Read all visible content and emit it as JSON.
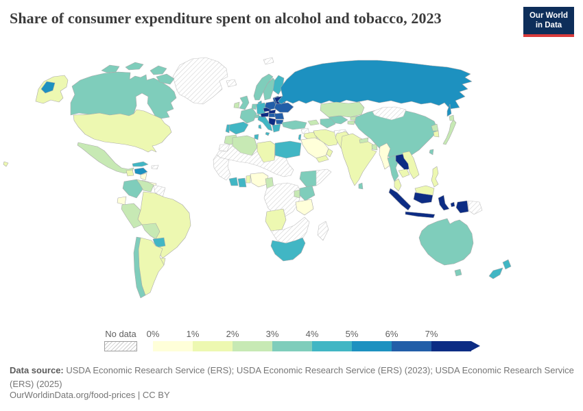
{
  "header": {
    "title": "Share of consumer expenditure spent on alcohol and tobacco, 2023",
    "logo": {
      "line1": "Our World",
      "line2": "in Data",
      "bg": "#0d2e5a",
      "accent": "#d93b3b"
    }
  },
  "legend": {
    "no_data_label": "No data",
    "ticks": [
      "0%",
      "1%",
      "2%",
      "3%",
      "4%",
      "5%",
      "6%",
      "7%"
    ],
    "bin_colors": [
      "#ffffd9",
      "#edf8b1",
      "#c7e9b4",
      "#7fcdbb",
      "#41b6c4",
      "#1d91c0",
      "#225ea8",
      "#0c2c84"
    ],
    "arrow_color": "#0c2c84"
  },
  "footer": {
    "source_label": "Data source:",
    "source_text": " USDA Economic Research Service (ERS); USDA Economic Research Service (ERS) (2023); USDA Economic Research Service (ERS) (2025)",
    "citation": "OurWorldinData.org/food-prices | CC BY"
  },
  "chart_data": {
    "type": "choropleth_map",
    "title": "Share of consumer expenditure spent on alcohol and tobacco, 2023",
    "unit": "% of consumer expenditure",
    "legend_bins": [
      {
        "range": "0-1%",
        "color": "#ffffd9"
      },
      {
        "range": "1-2%",
        "color": "#edf8b1"
      },
      {
        "range": "2-3%",
        "color": "#c7e9b4"
      },
      {
        "range": "3-4%",
        "color": "#7fcdbb"
      },
      {
        "range": "4-5%",
        "color": "#41b6c4"
      },
      {
        "range": "5-6%",
        "color": "#1d91c0"
      },
      {
        "range": "6-7%",
        "color": "#225ea8"
      },
      {
        "range": "7%+",
        "color": "#0c2c84"
      },
      {
        "range": "No data",
        "color": "no-data"
      }
    ],
    "entities": {
      "canada": {
        "label": "Canada",
        "value": "3-4%",
        "color": "#7fcdbb"
      },
      "greenland": {
        "label": "Greenland",
        "value": "No data",
        "color": "no-data"
      },
      "usa": {
        "label": "United States",
        "value": "1-2%",
        "color": "#edf8b1"
      },
      "mexico": {
        "label": "Mexico",
        "value": "2-3%",
        "color": "#c7e9b4"
      },
      "guatemala": {
        "label": "Guatemala",
        "value": "1-2%",
        "color": "#edf8b1"
      },
      "honduras": {
        "label": "Honduras",
        "value": "5-6%",
        "color": "#1d91c0"
      },
      "nicaragua": {
        "label": "Nicaragua",
        "value": "0-1%",
        "color": "#ffffd9"
      },
      "costa_rica_panama": {
        "label": "Costa Rica & Panama",
        "value": "0-1%",
        "color": "#ffffd9"
      },
      "cuba": {
        "label": "Cuba",
        "value": "4-5%",
        "color": "#41b6c4"
      },
      "hispaniola": {
        "label": "Haiti & Dominican Republic",
        "value": "No data",
        "color": "no-data"
      },
      "colombia": {
        "label": "Colombia",
        "value": "3-4%",
        "color": "#7fcdbb"
      },
      "venezuela": {
        "label": "Venezuela",
        "value": "2-3%",
        "color": "#c7e9b4"
      },
      "guianas": {
        "label": "Guyana & Suriname",
        "value": "No data",
        "color": "no-data"
      },
      "ecuador": {
        "label": "Ecuador",
        "value": "0-1%",
        "color": "#ffffd9"
      },
      "peru": {
        "label": "Peru",
        "value": "2-3%",
        "color": "#c7e9b4"
      },
      "brazil": {
        "label": "Brazil",
        "value": "1-2%",
        "color": "#edf8b1"
      },
      "bolivia": {
        "label": "Bolivia",
        "value": "2-3%",
        "color": "#c7e9b4"
      },
      "paraguay": {
        "label": "Paraguay",
        "value": "4-5%",
        "color": "#41b6c4"
      },
      "uruguay": {
        "label": "Uruguay",
        "value": "1-2%",
        "color": "#edf8b1"
      },
      "argentina": {
        "label": "Argentina",
        "value": "1-2%",
        "color": "#edf8b1"
      },
      "chile": {
        "label": "Chile",
        "value": "3-4%",
        "color": "#7fcdbb"
      },
      "iceland": {
        "label": "Iceland",
        "value": "No data",
        "color": "no-data"
      },
      "svalbard": {
        "label": "Svalbard",
        "value": "No data",
        "color": "no-data"
      },
      "ireland": {
        "label": "Ireland",
        "value": "2-3%",
        "color": "#c7e9b4"
      },
      "uk": {
        "label": "United Kingdom",
        "value": "3-4%",
        "color": "#7fcdbb"
      },
      "norway": {
        "label": "Norway",
        "value": "3-4%",
        "color": "#7fcdbb"
      },
      "sweden": {
        "label": "Sweden",
        "value": "3-4%",
        "color": "#7fcdbb"
      },
      "finland": {
        "label": "Finland",
        "value": "4-5%",
        "color": "#41b6c4"
      },
      "denmark": {
        "label": "Denmark",
        "value": "4-5%",
        "color": "#41b6c4"
      },
      "baltics": {
        "label": "Baltic states",
        "value": "6-7%",
        "color": "#225ea8"
      },
      "germany": {
        "label": "Germany",
        "value": "4-5%",
        "color": "#41b6c4"
      },
      "benelux": {
        "label": "Netherlands & Belgium",
        "value": "3-4%",
        "color": "#7fcdbb"
      },
      "france": {
        "label": "France",
        "value": "3-4%",
        "color": "#7fcdbb"
      },
      "switzerland": {
        "label": "Switzerland",
        "value": "3-4%",
        "color": "#7fcdbb"
      },
      "spain": {
        "label": "Spain",
        "value": "4-5%",
        "color": "#41b6c4"
      },
      "portugal": {
        "label": "Portugal",
        "value": "4-5%",
        "color": "#41b6c4"
      },
      "italy": {
        "label": "Italy",
        "value": "4-5%",
        "color": "#41b6c4"
      },
      "austria": {
        "label": "Austria",
        "value": "7%+",
        "color": "#0c2c84"
      },
      "czechia": {
        "label": "Czechia",
        "value": "7%+",
        "color": "#0c2c84"
      },
      "slovakia": {
        "label": "Slovakia",
        "value": "7%+",
        "color": "#0c2c84"
      },
      "poland": {
        "label": "Poland",
        "value": "6-7%",
        "color": "#225ea8"
      },
      "belarus": {
        "label": "Belarus",
        "value": "7%+",
        "color": "#0c2c84"
      },
      "ukraine": {
        "label": "Ukraine",
        "value": "6-7%",
        "color": "#225ea8"
      },
      "hungary": {
        "label": "Hungary",
        "value": "6-7%",
        "color": "#225ea8"
      },
      "romania": {
        "label": "Romania",
        "value": "6-7%",
        "color": "#225ea8"
      },
      "balkans": {
        "label": "Western Balkans",
        "value": "7%+",
        "color": "#0c2c84"
      },
      "bulgaria": {
        "label": "Bulgaria",
        "value": "6-7%",
        "color": "#225ea8"
      },
      "greece": {
        "label": "Greece",
        "value": "4-5%",
        "color": "#41b6c4"
      },
      "turkey": {
        "label": "Turkey",
        "value": "3-4%",
        "color": "#7fcdbb"
      },
      "russia": {
        "label": "Russia",
        "value": "5-6%",
        "color": "#1d91c0"
      },
      "kazakhstan": {
        "label": "Kazakhstan",
        "value": "2-3%",
        "color": "#c7e9b4"
      },
      "uzbekistan": {
        "label": "Uzbekistan",
        "value": "3-4%",
        "color": "#7fcdbb"
      },
      "turkmenistan": {
        "label": "Turkmenistan",
        "value": "3-4%",
        "color": "#7fcdbb"
      },
      "kyrgyzstan": {
        "label": "Kyrgyzstan",
        "value": "2-3%",
        "color": "#c7e9b4"
      },
      "tajikistan": {
        "label": "Tajikistan",
        "value": "2-3%",
        "color": "#c7e9b4"
      },
      "caucasus": {
        "label": "Caucasus",
        "value": "2-3%",
        "color": "#c7e9b4"
      },
      "syria": {
        "label": "Syria",
        "value": "No data",
        "color": "no-data"
      },
      "iraq": {
        "label": "Iraq",
        "value": "1-2%",
        "color": "#edf8b1"
      },
      "israel": {
        "label": "Israel",
        "value": "4-5%",
        "color": "#41b6c4"
      },
      "saudi_arabia": {
        "label": "Saudi Arabia",
        "value": "0-1%",
        "color": "#ffffd9"
      },
      "yemen": {
        "label": "Yemen",
        "value": "1-2%",
        "color": "#edf8b1"
      },
      "oman": {
        "label": "Oman",
        "value": "1-2%",
        "color": "#edf8b1"
      },
      "iran": {
        "label": "Iran",
        "value": "1-2%",
        "color": "#edf8b1"
      },
      "afghanistan": {
        "label": "Afghanistan",
        "value": "No data",
        "color": "no-data"
      },
      "morocco": {
        "label": "Morocco",
        "value": "2-3%",
        "color": "#c7e9b4"
      },
      "western_sahara": {
        "label": "Western Sahara",
        "value": "No data",
        "color": "no-data"
      },
      "algeria": {
        "label": "Algeria",
        "value": "2-3%",
        "color": "#c7e9b4"
      },
      "tunisia": {
        "label": "Tunisia",
        "value": "4-5%",
        "color": "#41b6c4"
      },
      "libya": {
        "label": "Libya",
        "value": "1-2%",
        "color": "#edf8b1"
      },
      "egypt": {
        "label": "Egypt",
        "value": "4-5%",
        "color": "#41b6c4"
      },
      "sahel": {
        "label": "Sahel & Sudan region",
        "value": "No data",
        "color": "no-data"
      },
      "west_africa_coast": {
        "label": "West African coast",
        "value": "No data",
        "color": "no-data"
      },
      "cote_divoire": {
        "label": "Cote d'Ivoire",
        "value": "4-5%",
        "color": "#41b6c4"
      },
      "ghana": {
        "label": "Ghana",
        "value": "4-5%",
        "color": "#41b6c4"
      },
      "benin_togo": {
        "label": "Benin & Togo",
        "value": "1-2%",
        "color": "#edf8b1"
      },
      "nigeria": {
        "label": "Nigeria",
        "value": "0-1%",
        "color": "#ffffd9"
      },
      "cameroon": {
        "label": "Cameroon",
        "value": "2-3%",
        "color": "#c7e9b4"
      },
      "central_africa": {
        "label": "Central Africa",
        "value": "No data",
        "color": "no-data"
      },
      "ethiopia": {
        "label": "Ethiopia",
        "value": "3-4%",
        "color": "#7fcdbb"
      },
      "somalia": {
        "label": "Somalia",
        "value": "No data",
        "color": "no-data"
      },
      "uganda": {
        "label": "Uganda",
        "value": "2-3%",
        "color": "#c7e9b4"
      },
      "kenya": {
        "label": "Kenya",
        "value": "3-4%",
        "color": "#7fcdbb"
      },
      "tanzania": {
        "label": "Tanzania",
        "value": "0-1%",
        "color": "#ffffd9"
      },
      "angola": {
        "label": "Angola",
        "value": "1-2%",
        "color": "#edf8b1"
      },
      "southern_africa": {
        "label": "Southern Africa interior",
        "value": "No data",
        "color": "no-data"
      },
      "south_africa": {
        "label": "South Africa",
        "value": "4-5%",
        "color": "#41b6c4"
      },
      "madagascar": {
        "label": "Madagascar",
        "value": "No data",
        "color": "no-data"
      },
      "pakistan": {
        "label": "Pakistan",
        "value": "1-2%",
        "color": "#edf8b1"
      },
      "india": {
        "label": "India",
        "value": "1-2%",
        "color": "#edf8b1"
      },
      "nepal": {
        "label": "Nepal",
        "value": "2-3%",
        "color": "#c7e9b4"
      },
      "bangladesh": {
        "label": "Bangladesh",
        "value": "2-3%",
        "color": "#c7e9b4"
      },
      "sri_lanka": {
        "label": "Sri Lanka",
        "value": "3-4%",
        "color": "#7fcdbb"
      },
      "china": {
        "label": "China",
        "value": "3-4%",
        "color": "#7fcdbb"
      },
      "mongolia": {
        "label": "Mongolia",
        "value": "No data",
        "color": "no-data"
      },
      "north_korea": {
        "label": "North Korea",
        "value": "2-3%",
        "color": "#c7e9b4"
      },
      "south_korea": {
        "label": "South Korea",
        "value": "1-2%",
        "color": "#edf8b1"
      },
      "japan": {
        "label": "Japan",
        "value": "2-3%",
        "color": "#c7e9b4"
      },
      "taiwan": {
        "label": "Taiwan",
        "value": "3-4%",
        "color": "#7fcdbb"
      },
      "myanmar": {
        "label": "Myanmar",
        "value": "0-1%",
        "color": "#ffffd9"
      },
      "thailand": {
        "label": "Thailand",
        "value": "3-4%",
        "color": "#7fcdbb"
      },
      "laos": {
        "label": "Laos",
        "value": "7%+",
        "color": "#0c2c84"
      },
      "vietnam": {
        "label": "Vietnam",
        "value": "1-2%",
        "color": "#edf8b1"
      },
      "cambodia": {
        "label": "Cambodia",
        "value": "1-2%",
        "color": "#edf8b1"
      },
      "malaysia": {
        "label": "Malaysia",
        "value": "1-2%",
        "color": "#edf8b1"
      },
      "indonesia": {
        "label": "Indonesia",
        "value": "7%+",
        "color": "#0c2c84"
      },
      "philippines": {
        "label": "Philippines",
        "value": "1-2%",
        "color": "#edf8b1"
      },
      "png": {
        "label": "Papua New Guinea",
        "value": "No data",
        "color": "no-data"
      },
      "australia": {
        "label": "Australia",
        "value": "3-4%",
        "color": "#7fcdbb"
      },
      "new_zealand": {
        "label": "New Zealand",
        "value": "4-5%",
        "color": "#41b6c4"
      }
    }
  }
}
